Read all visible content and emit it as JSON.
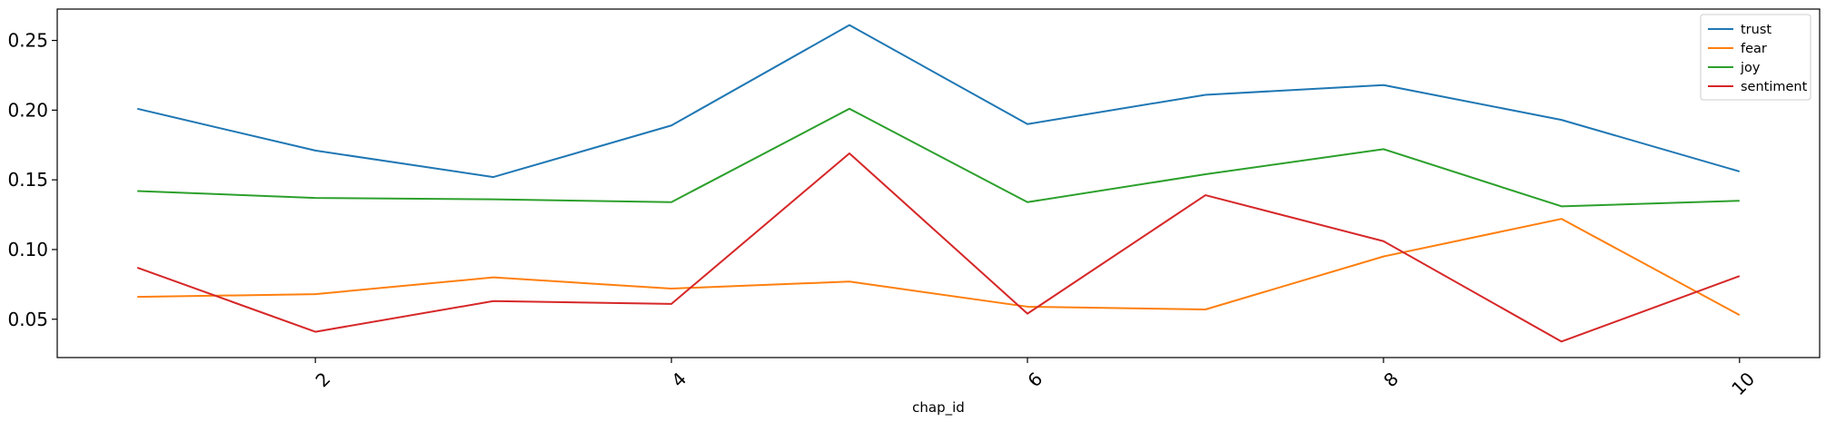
{
  "chart_data": {
    "type": "line",
    "xlabel": "chap_id",
    "ylabel": "",
    "x": [
      1,
      2,
      3,
      4,
      5,
      6,
      7,
      8,
      9,
      10
    ],
    "xticks": [
      2,
      4,
      6,
      8,
      10
    ],
    "xtick_labels": [
      "2",
      "4",
      "6",
      "8",
      "10"
    ],
    "xtick_rotation_deg": 45,
    "xlim": [
      0.55,
      10.45
    ],
    "ylim": [
      0.0225,
      0.2725
    ],
    "yticks": [
      0.05,
      0.1,
      0.15,
      0.2,
      0.25
    ],
    "ytick_labels": [
      "0.05",
      "0.10",
      "0.15",
      "0.20",
      "0.25"
    ],
    "grid": false,
    "legend_position": "top-right",
    "series": [
      {
        "name": "trust",
        "color": "#1f77b4",
        "values": [
          0.201,
          0.171,
          0.152,
          0.189,
          0.261,
          0.19,
          0.211,
          0.218,
          0.193,
          0.156
        ]
      },
      {
        "name": "fear",
        "color": "#ff7f0e",
        "values": [
          0.066,
          0.068,
          0.08,
          0.072,
          0.077,
          0.059,
          0.057,
          0.095,
          0.122,
          0.053
        ]
      },
      {
        "name": "joy",
        "color": "#2ca02c",
        "values": [
          0.142,
          0.137,
          0.136,
          0.134,
          0.201,
          0.134,
          0.154,
          0.172,
          0.131,
          0.135
        ]
      },
      {
        "name": "sentiment",
        "color": "#d62728",
        "values": [
          0.087,
          0.041,
          0.063,
          0.061,
          0.169,
          0.054,
          0.139,
          0.106,
          0.034,
          0.081
        ]
      }
    ]
  }
}
